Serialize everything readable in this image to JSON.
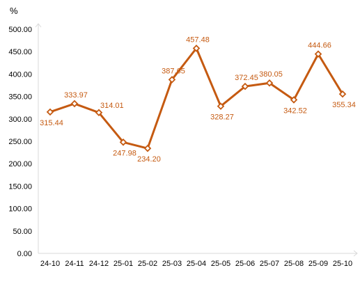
{
  "chart_data": {
    "type": "line",
    "title": "",
    "xlabel": "",
    "ylabel": "%",
    "categories": [
      "24-10",
      "24-11",
      "24-12",
      "25-01",
      "25-02",
      "25-03",
      "25-04",
      "25-05",
      "25-06",
      "25-07",
      "25-08",
      "25-09",
      "25-10"
    ],
    "series": [
      {
        "values": [
          315.44,
          333.97,
          314.01,
          247.98,
          234.2,
          387.65,
          457.48,
          328.27,
          372.45,
          380.05,
          342.52,
          444.66,
          355.34
        ]
      }
    ],
    "value_labels": [
      "315.44",
      "333.97",
      "314.01",
      "247.98",
      "234.20",
      "387.65",
      "457.48",
      "328.27",
      "372.45",
      "380.05",
      "342.52",
      "444.66",
      "355.34"
    ],
    "yticks": [
      "0.00",
      "50.00",
      "100.00",
      "150.00",
      "200.00",
      "250.00",
      "300.00",
      "350.00",
      "400.00",
      "450.00",
      "500.00"
    ],
    "ylim": [
      0,
      500
    ],
    "grid": false,
    "legend": "none",
    "colors": {
      "line": "#c55a11",
      "marker_fill": "#ffffff",
      "label": "#c55a11",
      "axis": "#d9d9d9"
    }
  }
}
